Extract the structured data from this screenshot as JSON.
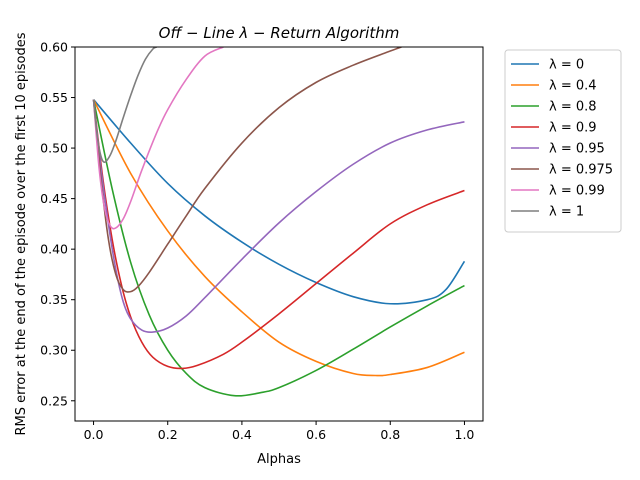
{
  "chart_data": {
    "type": "line",
    "title": "Off − Line λ − Return Algorithm",
    "xlabel": "Alphas",
    "ylabel": "RMS error at the end of the episode over the first 10 episodes",
    "xlim": [
      -0.05,
      1.05
    ],
    "ylim": [
      0.23,
      0.6
    ],
    "xticks": [
      0.0,
      0.2,
      0.4,
      0.6,
      0.8,
      1.0
    ],
    "xtick_labels": [
      "0.0",
      "0.2",
      "0.4",
      "0.6",
      "0.8",
      "1.0"
    ],
    "yticks": [
      0.25,
      0.3,
      0.35,
      0.4,
      0.45,
      0.5,
      0.55,
      0.6
    ],
    "ytick_labels": [
      "0.25",
      "0.30",
      "0.35",
      "0.40",
      "0.45",
      "0.50",
      "0.55",
      "0.60"
    ],
    "grid": false,
    "legend_position": "outside-right-top",
    "series": [
      {
        "name": "λ = 0",
        "color": "#1f77b4",
        "x": [
          0,
          0.1,
          0.2,
          0.3,
          0.4,
          0.5,
          0.6,
          0.7,
          0.8,
          0.9,
          0.95,
          1.0
        ],
        "y": [
          0.548,
          0.505,
          0.465,
          0.433,
          0.407,
          0.385,
          0.367,
          0.353,
          0.346,
          0.35,
          0.36,
          0.388
        ]
      },
      {
        "name": "λ = 0.4",
        "color": "#ff7f0e",
        "x": [
          0,
          0.1,
          0.2,
          0.3,
          0.4,
          0.5,
          0.6,
          0.7,
          0.76,
          0.8,
          0.9,
          1.0
        ],
        "y": [
          0.548,
          0.475,
          0.418,
          0.373,
          0.338,
          0.308,
          0.289,
          0.277,
          0.275,
          0.276,
          0.283,
          0.298
        ]
      },
      {
        "name": "λ = 0.8",
        "color": "#2ca02c",
        "x": [
          0,
          0.05,
          0.1,
          0.15,
          0.2,
          0.25,
          0.3,
          0.38,
          0.45,
          0.5,
          0.6,
          0.7,
          0.8,
          0.9,
          1.0
        ],
        "y": [
          0.548,
          0.46,
          0.387,
          0.335,
          0.3,
          0.277,
          0.263,
          0.255,
          0.258,
          0.263,
          0.28,
          0.301,
          0.323,
          0.344,
          0.364
        ]
      },
      {
        "name": "λ = 0.9",
        "color": "#d62728",
        "x": [
          0,
          0.025,
          0.05,
          0.075,
          0.1,
          0.13,
          0.16,
          0.2,
          0.24,
          0.28,
          0.35,
          0.4,
          0.5,
          0.6,
          0.7,
          0.8,
          0.9,
          1.0
        ],
        "y": [
          0.548,
          0.47,
          0.41,
          0.365,
          0.333,
          0.308,
          0.293,
          0.284,
          0.282,
          0.285,
          0.296,
          0.308,
          0.336,
          0.366,
          0.396,
          0.425,
          0.444,
          0.458
        ]
      },
      {
        "name": "λ = 0.95",
        "color": "#9467bd",
        "x": [
          0,
          0.02,
          0.04,
          0.06,
          0.08,
          0.1,
          0.13,
          0.16,
          0.2,
          0.25,
          0.3,
          0.4,
          0.5,
          0.6,
          0.7,
          0.8,
          0.9,
          1.0
        ],
        "y": [
          0.548,
          0.48,
          0.425,
          0.38,
          0.348,
          0.331,
          0.32,
          0.318,
          0.322,
          0.334,
          0.352,
          0.39,
          0.426,
          0.457,
          0.484,
          0.505,
          0.518,
          0.526
        ]
      },
      {
        "name": "λ = 0.975",
        "color": "#8c564b",
        "x": [
          0,
          0.02,
          0.04,
          0.06,
          0.08,
          0.1,
          0.12,
          0.15,
          0.2,
          0.25,
          0.3,
          0.4,
          0.5,
          0.6,
          0.7,
          0.8,
          0.83
        ],
        "y": [
          0.548,
          0.47,
          0.41,
          0.375,
          0.36,
          0.358,
          0.363,
          0.377,
          0.405,
          0.433,
          0.46,
          0.505,
          0.54,
          0.565,
          0.582,
          0.596,
          0.6
        ]
      },
      {
        "name": "λ = 0.99",
        "color": "#e377c2",
        "x": [
          0,
          0.015,
          0.03,
          0.045,
          0.06,
          0.08,
          0.1,
          0.13,
          0.17,
          0.2,
          0.25,
          0.3,
          0.35
        ],
        "y": [
          0.548,
          0.48,
          0.44,
          0.423,
          0.421,
          0.43,
          0.447,
          0.478,
          0.515,
          0.538,
          0.568,
          0.591,
          0.6
        ]
      },
      {
        "name": "λ = 1",
        "color": "#7f7f7f",
        "x": [
          0,
          0.01,
          0.02,
          0.03,
          0.045,
          0.06,
          0.08,
          0.1,
          0.12,
          0.14,
          0.16,
          0.17
        ],
        "y": [
          0.548,
          0.512,
          0.492,
          0.486,
          0.493,
          0.507,
          0.53,
          0.552,
          0.572,
          0.588,
          0.598,
          0.6
        ]
      }
    ]
  }
}
